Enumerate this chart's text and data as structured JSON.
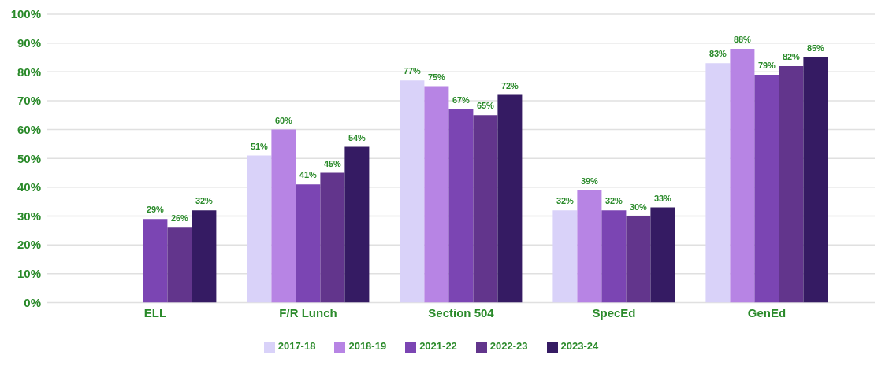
{
  "chart_data": {
    "type": "bar",
    "categories": [
      "ELL",
      "F/R Lunch",
      "Section 504",
      "SpecEd",
      "GenEd"
    ],
    "series": [
      {
        "name": "2017-18",
        "color": "#d9d2f9",
        "values": [
          null,
          51,
          77,
          32,
          83
        ],
        "value_labels": [
          null,
          "51%",
          "77%",
          "32%",
          "83%"
        ]
      },
      {
        "name": "2018-19",
        "color": "#b784e4",
        "values": [
          null,
          60,
          75,
          39,
          88
        ],
        "value_labels": [
          null,
          "60%",
          "75%",
          "39%",
          "88%"
        ]
      },
      {
        "name": "2021-22",
        "color": "#7b45b3",
        "values": [
          29,
          41,
          67,
          32,
          79
        ],
        "value_labels": [
          "29%",
          "41%",
          "67%",
          "32%",
          "79%"
        ]
      },
      {
        "name": "2022-23",
        "color": "#62358c",
        "values": [
          26,
          45,
          65,
          30,
          82
        ],
        "value_labels": [
          "26%",
          "45%",
          "65%",
          "30%",
          "82%"
        ]
      },
      {
        "name": "2023-24",
        "color": "#351b63",
        "values": [
          32,
          54,
          72,
          33,
          85
        ],
        "value_labels": [
          "32%",
          "54%",
          "72%",
          "33%",
          "85%"
        ]
      }
    ],
    "ylim": [
      0,
      100
    ],
    "yticks": [
      {
        "value": 0,
        "label": "0%"
      },
      {
        "value": 10,
        "label": "10%"
      },
      {
        "value": 20,
        "label": "20%"
      },
      {
        "value": 30,
        "label": "30%"
      },
      {
        "value": 40,
        "label": "40%"
      },
      {
        "value": 50,
        "label": "50%"
      },
      {
        "value": 60,
        "label": "60%"
      },
      {
        "value": 70,
        "label": "70%"
      },
      {
        "value": 80,
        "label": "80%"
      },
      {
        "value": 90,
        "label": "90%"
      },
      {
        "value": 100,
        "label": "100%"
      }
    ],
    "grid": "y",
    "legend": "bottom"
  }
}
